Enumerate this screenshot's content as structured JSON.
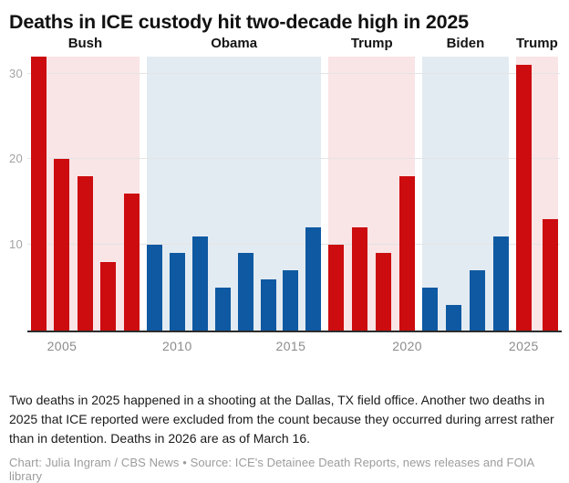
{
  "title": "Deaths in ICE custody hit two-decade high in 2025",
  "note": "Two deaths in 2025 happened in a shooting at the Dallas, TX field office. Another two deaths in 2025 that ICE reported were excluded from the count because they occurred during arrest rather than in detention. Deaths in 2026 are as of March 16.",
  "credit": "Chart: Julia Ingram / CBS News • Source: ICE's Detainee Death Reports, news releases and FOIA library",
  "colors": {
    "republican_bar": "#cc0c0f",
    "democrat_bar": "#0e59a2",
    "republican_band": "#f9e4e6",
    "democrat_band": "#e3ebf2",
    "gridline": "#e4e4e4",
    "axis_line": "#2d2d2d",
    "y_tick_label": "#a3a3a3",
    "x_tick_label": "#8c8c8c"
  },
  "chart_data": {
    "type": "bar",
    "title": "Deaths in ICE custody hit two-decade high in 2025",
    "xlabel": "",
    "ylabel": "",
    "ylim": [
      0,
      32
    ],
    "yticks": [
      10,
      20,
      30
    ],
    "xticks": [
      2005,
      2010,
      2015,
      2020,
      2025
    ],
    "grid": true,
    "band_annotations": [
      "Bush",
      "Obama",
      "Trump",
      "Biden",
      "Trump"
    ],
    "eras": [
      {
        "president": "Bush",
        "party": "republican",
        "years": [
          2004,
          2005,
          2006,
          2007,
          2008
        ],
        "values": [
          32,
          20,
          18,
          8,
          16
        ]
      },
      {
        "president": "Obama",
        "party": "democrat",
        "years": [
          2009,
          2010,
          2011,
          2012,
          2013,
          2014,
          2015,
          2016
        ],
        "values": [
          10,
          9,
          11,
          5,
          9,
          6,
          7,
          12
        ]
      },
      {
        "president": "Trump",
        "party": "republican",
        "years": [
          2017,
          2018,
          2019,
          2020
        ],
        "values": [
          10,
          12,
          9,
          18
        ]
      },
      {
        "president": "Biden",
        "party": "democrat",
        "years": [
          2021,
          2022,
          2023,
          2024
        ],
        "values": [
          5,
          3,
          7,
          11
        ]
      },
      {
        "president": "Trump",
        "party": "republican",
        "years": [
          2025,
          2026
        ],
        "values": [
          31,
          13
        ]
      }
    ]
  }
}
